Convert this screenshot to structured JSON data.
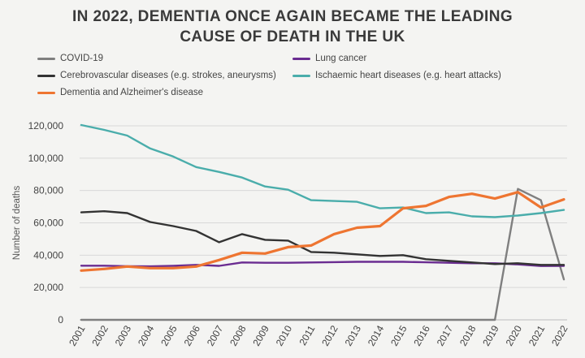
{
  "title_lines": [
    "IN 2022, DEMENTIA ONCE AGAIN BECAME THE LEADING",
    "CAUSE OF DEATH IN THE UK"
  ],
  "colors": {
    "covid": "#7f7f7f",
    "lung": "#6a2c91",
    "cerebro": "#333333",
    "ischaemic": "#4aadab",
    "dementia": "#ee7531",
    "grid": "#d8d8d8",
    "background": "#f4f4f2"
  },
  "chart_data": {
    "type": "line",
    "title": "IN 2022, DEMENTIA ONCE AGAIN BECAME THE LEADING CAUSE OF DEATH IN THE UK",
    "xlabel": "",
    "ylabel": "Number of deaths",
    "ylim": [
      0,
      120000
    ],
    "yticks": [
      0,
      20000,
      40000,
      60000,
      80000,
      100000,
      120000
    ],
    "ytick_labels": [
      "0",
      "20,000",
      "40,000",
      "60,000",
      "80,000",
      "100,000",
      "120,000"
    ],
    "grid": true,
    "legend_position": "top",
    "x": [
      "2001",
      "2002",
      "2003",
      "2004",
      "2005",
      "2006",
      "2007",
      "2008",
      "2009",
      "2010",
      "2011",
      "2012",
      "2013",
      "2014",
      "2015",
      "2016",
      "2017",
      "2018",
      "2019",
      "2020",
      "2021",
      "2022"
    ],
    "series": [
      {
        "name": "COVID-19",
        "key": "covid",
        "values": [
          0,
          0,
          0,
          0,
          0,
          0,
          0,
          0,
          0,
          0,
          0,
          0,
          0,
          0,
          0,
          0,
          0,
          0,
          0,
          81000,
          74000,
          25000
        ]
      },
      {
        "name": "Lung cancer",
        "key": "lung",
        "values": [
          33500,
          33500,
          33200,
          33100,
          33400,
          34000,
          33400,
          35500,
          35300,
          35300,
          35500,
          35700,
          35900,
          35900,
          35900,
          35600,
          35300,
          35000,
          35000,
          34300,
          33300,
          33400
        ]
      },
      {
        "name": "Cerebrovascular diseases (e.g. strokes, aneurysms)",
        "key": "cerebro",
        "values": [
          66500,
          67200,
          66000,
          60500,
          58000,
          55000,
          48000,
          53000,
          49500,
          49000,
          42000,
          41500,
          40500,
          39500,
          40000,
          37500,
          36500,
          35500,
          34500,
          35000,
          34000,
          34000
        ]
      },
      {
        "name": "Ischaemic heart diseases (e.g. heart attacks)",
        "key": "ischaemic",
        "values": [
          120500,
          117500,
          114000,
          106000,
          101000,
          94500,
          91500,
          88000,
          82500,
          80500,
          74000,
          73500,
          73000,
          69000,
          69500,
          66000,
          66500,
          64000,
          63500,
          64500,
          66000,
          68000
        ]
      },
      {
        "name": "Dementia and Alzheimer's disease",
        "key": "dementia",
        "values": [
          30500,
          31500,
          33000,
          32000,
          32000,
          33000,
          37000,
          41500,
          41000,
          45000,
          46000,
          53000,
          57000,
          58000,
          69000,
          70500,
          76000,
          78000,
          75000,
          79000,
          69500,
          74500
        ]
      }
    ]
  }
}
